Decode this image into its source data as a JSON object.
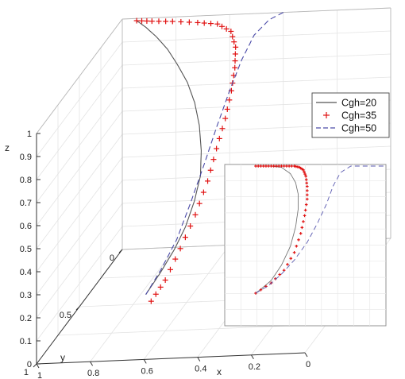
{
  "chart_data": [
    {
      "type": "line",
      "view": "3d",
      "title": "",
      "xlabel": "x",
      "ylabel": "y",
      "zlabel": "z",
      "xlim": [
        0,
        1
      ],
      "ylim": [
        0,
        1
      ],
      "zlim": [
        0,
        1
      ],
      "x_ticks": [
        "1",
        "0.8",
        "0.6",
        "0.4",
        "0.2",
        "0"
      ],
      "y_ticks": [
        "0",
        "0.5",
        "1"
      ],
      "z_ticks": [
        "0",
        "0.1",
        "0.2",
        "0.3",
        "0.4",
        "0.5",
        "0.6",
        "0.7",
        "0.8",
        "0.9",
        "1"
      ],
      "grid": true,
      "legend": {
        "placement": "right",
        "entries": [
          "Cgh=20",
          "Cgh=35",
          "Cgh=50"
        ]
      },
      "series": [
        {
          "name": "Cgh=20",
          "style": "solid",
          "color": "#555555",
          "points": [
            [
              0.94,
              0.02,
              1.0
            ],
            [
              0.9,
              0.04,
              0.98
            ],
            [
              0.85,
              0.07,
              0.95
            ],
            [
              0.8,
              0.1,
              0.91
            ],
            [
              0.75,
              0.14,
              0.86
            ],
            [
              0.7,
              0.18,
              0.8
            ],
            [
              0.66,
              0.22,
              0.73
            ],
            [
              0.63,
              0.26,
              0.65
            ],
            [
              0.61,
              0.3,
              0.56
            ],
            [
              0.6,
              0.34,
              0.47
            ],
            [
              0.61,
              0.38,
              0.38
            ],
            [
              0.63,
              0.42,
              0.29
            ],
            [
              0.66,
              0.46,
              0.21
            ],
            [
              0.7,
              0.5,
              0.13
            ],
            [
              0.74,
              0.54,
              0.06
            ]
          ]
        },
        {
          "name": "Cgh=35",
          "style": "plus",
          "color": "#e01010",
          "points": [
            [
              0.94,
              0.02,
              1.0
            ],
            [
              0.88,
              0.03,
              1.0
            ],
            [
              0.8,
              0.04,
              1.0
            ],
            [
              0.7,
              0.06,
              1.0
            ],
            [
              0.62,
              0.08,
              1.0
            ],
            [
              0.56,
              0.11,
              0.98
            ],
            [
              0.53,
              0.15,
              0.93
            ],
            [
              0.52,
              0.19,
              0.86
            ],
            [
              0.52,
              0.23,
              0.78
            ],
            [
              0.53,
              0.27,
              0.68
            ],
            [
              0.55,
              0.31,
              0.57
            ],
            [
              0.57,
              0.35,
              0.45
            ],
            [
              0.6,
              0.4,
              0.33
            ],
            [
              0.64,
              0.45,
              0.21
            ],
            [
              0.68,
              0.5,
              0.1
            ],
            [
              0.72,
              0.54,
              0.03
            ]
          ]
        },
        {
          "name": "Cgh=50",
          "style": "dashed",
          "color": "#4a4aa8",
          "points": [
            [
              0.4,
              0.0,
              1.0
            ],
            [
              0.44,
              0.04,
              0.99
            ],
            [
              0.48,
              0.09,
              0.95
            ],
            [
              0.51,
              0.14,
              0.87
            ],
            [
              0.54,
              0.19,
              0.76
            ],
            [
              0.57,
              0.25,
              0.63
            ],
            [
              0.6,
              0.31,
              0.49
            ],
            [
              0.63,
              0.37,
              0.36
            ],
            [
              0.66,
              0.43,
              0.24
            ],
            [
              0.7,
              0.49,
              0.14
            ],
            [
              0.74,
              0.54,
              0.06
            ]
          ]
        }
      ]
    },
    {
      "type": "line",
      "view": "inset",
      "grid": true,
      "series": [
        {
          "name": "Cgh=20",
          "style": "solid",
          "color": "#777777",
          "points": [
            [
              0.0,
              0.0
            ],
            [
              0.05,
              0.04
            ],
            [
              0.12,
              0.1
            ],
            [
              0.2,
              0.22
            ],
            [
              0.27,
              0.37
            ],
            [
              0.31,
              0.52
            ],
            [
              0.33,
              0.66
            ],
            [
              0.33,
              0.78
            ],
            [
              0.31,
              0.87
            ],
            [
              0.27,
              0.94
            ],
            [
              0.2,
              0.99
            ],
            [
              0.12,
              1.0
            ],
            [
              0.0,
              1.0
            ]
          ]
        },
        {
          "name": "Cgh=35",
          "style": "plus",
          "color": "#e01010",
          "points": [
            [
              0.0,
              1.0
            ],
            [
              0.06,
              1.0
            ],
            [
              0.12,
              1.0
            ],
            [
              0.18,
              1.0
            ],
            [
              0.24,
              1.0
            ],
            [
              0.3,
              1.0
            ],
            [
              0.34,
              0.99
            ],
            [
              0.37,
              0.97
            ],
            [
              0.39,
              0.92
            ],
            [
              0.4,
              0.84
            ],
            [
              0.4,
              0.74
            ],
            [
              0.38,
              0.61
            ],
            [
              0.35,
              0.47
            ],
            [
              0.3,
              0.32
            ],
            [
              0.22,
              0.18
            ],
            [
              0.12,
              0.08
            ],
            [
              0.0,
              0.0
            ]
          ]
        },
        {
          "name": "Cgh=50",
          "style": "dashed",
          "color": "#5a5ab0",
          "points": [
            [
              0.0,
              0.0
            ],
            [
              0.1,
              0.06
            ],
            [
              0.2,
              0.15
            ],
            [
              0.3,
              0.26
            ],
            [
              0.4,
              0.4
            ],
            [
              0.48,
              0.55
            ],
            [
              0.55,
              0.7
            ],
            [
              0.6,
              0.84
            ],
            [
              0.66,
              0.95
            ],
            [
              0.74,
              1.0
            ],
            [
              1.0,
              1.0
            ]
          ]
        }
      ]
    }
  ]
}
